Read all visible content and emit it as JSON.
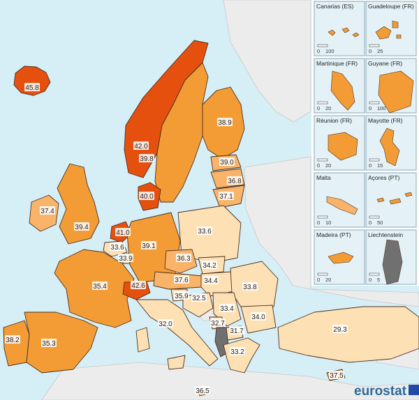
{
  "colors": {
    "sea": "#d6eef6",
    "class_1": "#fde0b4",
    "class_2": "#f9b46a",
    "class_3": "#f39c35",
    "class_4": "#ef8a1e",
    "class_5": "#e6500f",
    "no_data": "#707070",
    "non_covered": "#ececec",
    "logo_blue": "#2b6a9b"
  },
  "regions": [
    {
      "name": "Iceland",
      "value": "45.8",
      "color": "#e6500f"
    },
    {
      "name": "Sweden",
      "value": "42.0",
      "color": "#e6500f"
    },
    {
      "name": "Norway",
      "value": "39.8",
      "color": "#f39c35"
    },
    {
      "name": "Finland",
      "value": "38.9",
      "color": "#f39c35"
    },
    {
      "name": "Estonia",
      "value": "39.0",
      "color": "#f9b46a"
    },
    {
      "name": "Latvia",
      "value": "36.8",
      "color": "#f9b46a"
    },
    {
      "name": "Lithuania",
      "value": "37.1",
      "color": "#f9b46a"
    },
    {
      "name": "Denmark",
      "value": "40.0",
      "color": "#e6500f"
    },
    {
      "name": "Ireland",
      "value": "37.4",
      "color": "#f9b46a"
    },
    {
      "name": "United Kingdom",
      "value": "39.4",
      "color": "#f39c35"
    },
    {
      "name": "Netherlands",
      "value": "41.0",
      "color": "#e6500f"
    },
    {
      "name": "Belgium",
      "value": "33.6",
      "color": "#fde0b4"
    },
    {
      "name": "Luxembourg",
      "value": "33.9",
      "color": "#fde0b4"
    },
    {
      "name": "Germany",
      "value": "39.1",
      "color": "#f39c35"
    },
    {
      "name": "Poland",
      "value": "33.6",
      "color": "#fde0b4"
    },
    {
      "name": "Czechia",
      "value": "36.3",
      "color": "#f9b46a"
    },
    {
      "name": "Slovakia",
      "value": "34.2",
      "color": "#fde0b4"
    },
    {
      "name": "Austria",
      "value": "37.6",
      "color": "#f9b46a"
    },
    {
      "name": "Hungary",
      "value": "34.4",
      "color": "#fde0b4"
    },
    {
      "name": "Romania",
      "value": "33.8",
      "color": "#fde0b4"
    },
    {
      "name": "France",
      "value": "35.4",
      "color": "#f39c35"
    },
    {
      "name": "Switzerland",
      "value": "42.6",
      "color": "#e6500f"
    },
    {
      "name": "Slovenia",
      "value": "35.9",
      "color": "#fde0b4"
    },
    {
      "name": "Croatia",
      "value": "32.5",
      "color": "#fde0b4"
    },
    {
      "name": "Serbia",
      "value": "33.4",
      "color": "#fde0b4"
    },
    {
      "name": "Bulgaria",
      "value": "34.0",
      "color": "#fde0b4"
    },
    {
      "name": "Montenegro",
      "value": "32.7",
      "color": "#fde0b4"
    },
    {
      "name": "North Macedonia",
      "value": "31.7",
      "color": "#fde0b4"
    },
    {
      "name": "Albania",
      "value": "",
      "color": "#707070"
    },
    {
      "name": "Greece",
      "value": "33.2",
      "color": "#fde0b4"
    },
    {
      "name": "Italy",
      "value": "32.0",
      "color": "#fde0b4"
    },
    {
      "name": "Portugal",
      "value": "38.2",
      "color": "#f39c35"
    },
    {
      "name": "Spain",
      "value": "35.3",
      "color": "#f39c35"
    },
    {
      "name": "Turkey",
      "value": "29.3",
      "color": "#fde0b4"
    },
    {
      "name": "Cyprus",
      "value": "37.5",
      "color": "#f9b46a"
    },
    {
      "name": "Malta",
      "value": "36.5",
      "color": "#f9b46a"
    }
  ],
  "insets": [
    {
      "title": "Canarias (ES)",
      "scale_min": "0",
      "scale_max": "100"
    },
    {
      "title": "Guadeloupe (FR)",
      "scale_min": "0",
      "scale_max": "25"
    },
    {
      "title": "Martinique (FR)",
      "scale_min": "0",
      "scale_max": "20"
    },
    {
      "title": "Guyane (FR)",
      "scale_min": "0",
      "scale_max": "100"
    },
    {
      "title": "Réunion (FR)",
      "scale_min": "0",
      "scale_max": "20"
    },
    {
      "title": "Mayotte (FR)",
      "scale_min": "0",
      "scale_max": "15"
    },
    {
      "title": "Malta",
      "scale_min": "0",
      "scale_max": "10"
    },
    {
      "title": "Açores (PT)",
      "scale_min": "0",
      "scale_max": "50"
    },
    {
      "title": "Madeira (PT)",
      "scale_min": "0",
      "scale_max": "20"
    },
    {
      "title": "Liechtenstein",
      "scale_min": "0",
      "scale_max": "5"
    }
  ],
  "logo": {
    "text": "eurostat"
  }
}
